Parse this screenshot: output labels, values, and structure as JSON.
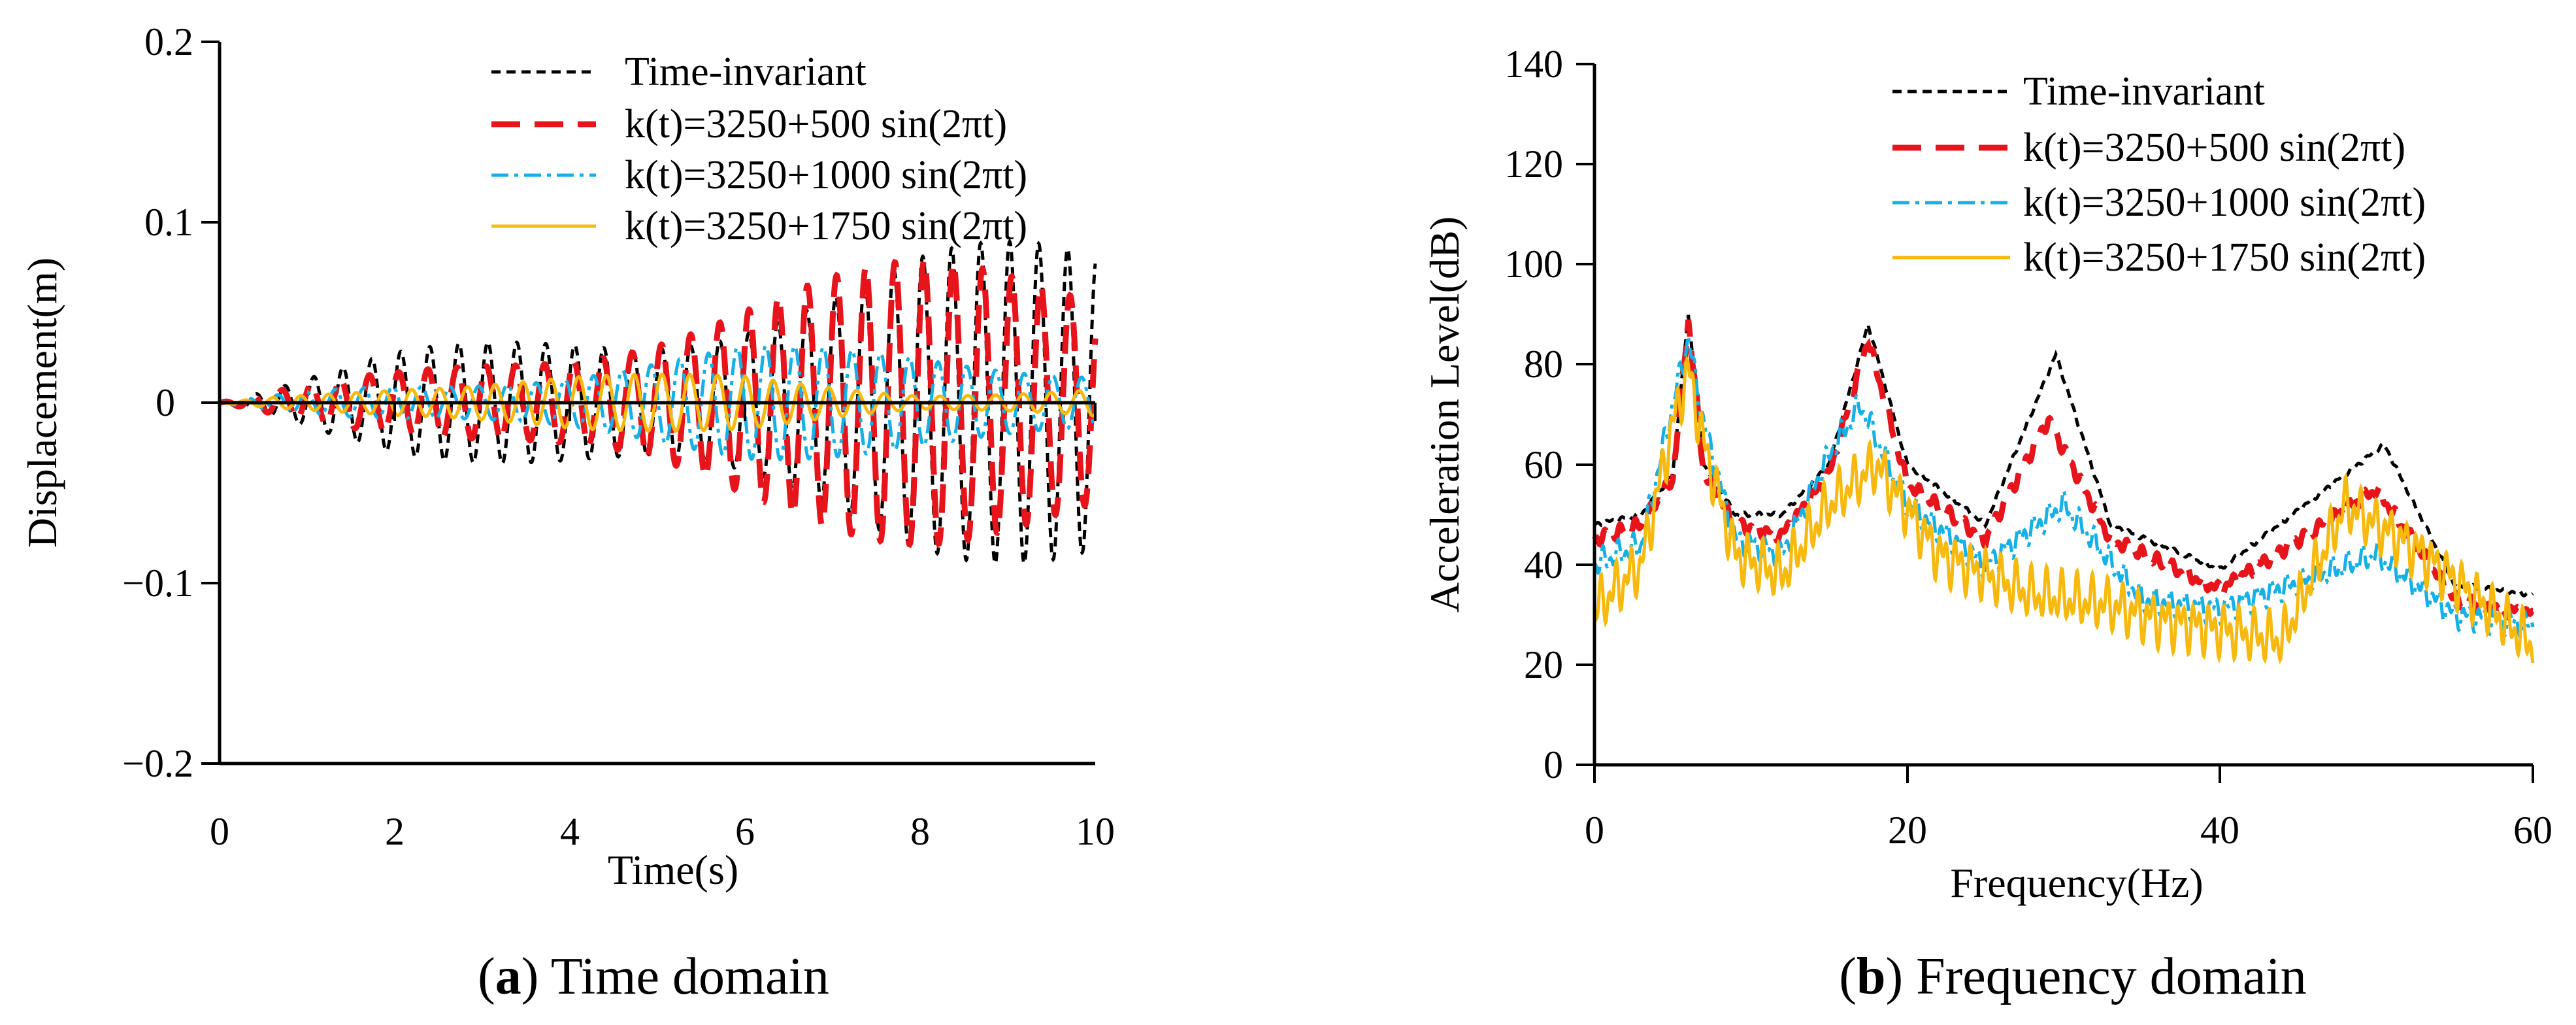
{
  "chart_data": [
    {
      "type": "line",
      "panel": "a",
      "caption_letter": "a",
      "caption_rest": ") Time domain",
      "xlabel": "Time(s)",
      "ylabel": "Displacement(m)",
      "xlim": [
        0,
        10
      ],
      "ylim": [
        -0.2,
        0.2
      ],
      "xticks": [
        "0",
        "2",
        "4",
        "6",
        "8",
        "10"
      ],
      "yticks": [
        "0.2",
        "0.1",
        "0",
        "−0.1",
        "−0.2"
      ],
      "legend_position": "top-right",
      "series": [
        {
          "name": "Time-invariant",
          "color": "#000000",
          "envelope": {
            "t": [
              0,
              2,
              4,
              6,
              8,
              10
            ],
            "amp": [
              0,
              0.028,
              0.05,
              0.068,
              0.085,
              0.095
            ]
          }
        },
        {
          "name": "k(t)=3250+500 sin(2πt)",
          "color": "#e8141b",
          "envelope": {
            "t": [
              0,
              2,
              4,
              6,
              8,
              10
            ],
            "amp": [
              0,
              0.02,
              0.045,
              0.065,
              0.08,
              0.09
            ]
          }
        },
        {
          "name": "k(t)=3250+1000 sin(2πt)",
          "color": "#15b1e6",
          "envelope": {
            "t": [
              0,
              2,
              4,
              6,
              8,
              10
            ],
            "amp": [
              0,
              0.015,
              0.022,
              0.032,
              0.03,
              0.028
            ]
          }
        },
        {
          "name": "k(t)=3250+1750 sin(2πt)",
          "color": "#f7b90d",
          "envelope": {
            "t": [
              0,
              2,
              4,
              6,
              8,
              10
            ],
            "amp": [
              0,
              0.014,
              0.017,
              0.015,
              0.006,
              0.012
            ]
          }
        }
      ]
    },
    {
      "type": "line",
      "panel": "b",
      "caption_letter": "b",
      "caption_rest": ") Frequency domain",
      "xlabel": "Frequency(Hz)",
      "ylabel": "Acceleration Level(dB)",
      "xlim": [
        0,
        60
      ],
      "ylim": [
        0,
        140
      ],
      "xticks": [
        "0",
        "20",
        "40",
        "60"
      ],
      "yticks": [
        "140",
        "120",
        "100",
        "80",
        "60",
        "40",
        "20",
        "0"
      ],
      "legend_position": "top-right",
      "series": [
        {
          "name": "Time-invariant",
          "color": "#000000",
          "points": {
            "x": [
              0,
              3,
              5,
              6,
              7,
              9,
              12,
              15,
              17.5,
              20,
              25,
              29.5,
              33,
              40,
              50.5,
              55,
              60
            ],
            "y": [
              48,
              50,
              58,
              90,
              60,
              50,
              50,
              60,
              88,
              60,
              48,
              82,
              48,
              39,
              64,
              36,
              34
            ]
          }
        },
        {
          "name": "k(t)=3250+500 sin(2πt)",
          "color": "#e8141b",
          "points": {
            "x": [
              0,
              3,
              5,
              6,
              7,
              9,
              12,
              15,
              17.5,
              20,
              25,
              29,
              33,
              40,
              50,
              55,
              60
            ],
            "y": [
              45,
              48,
              57,
              89,
              58,
              48,
              46,
              58,
              85,
              56,
              45,
              69,
              45,
              35,
              55,
              33,
              30
            ]
          }
        },
        {
          "name": "k(t)=3250+1000 sin(2πt)",
          "color": "#15b1e6",
          "points": {
            "x": [
              0,
              3,
              5,
              6,
              7,
              9,
              12,
              15,
              17,
              20,
              25,
              30,
              35,
              40,
              50,
              55,
              60
            ],
            "y": [
              40,
              44,
              72,
              85,
              68,
              45,
              42,
              62,
              72,
              52,
              40,
              52,
              33,
              31,
              42,
              30,
              28
            ]
          }
        },
        {
          "name": "k(t)=3250+1750 sin(2πt)",
          "color": "#f7b90d",
          "points": {
            "x": [
              0,
              3,
              5,
              6,
              7,
              9,
              12,
              15,
              18,
              22,
              28,
              33,
              36,
              44,
              48,
              53,
              60
            ],
            "y": [
              31,
              40,
              68,
              79,
              64,
              42,
              38,
              52,
              60,
              42,
              34,
              32,
              29,
              25,
              52,
              42,
              24
            ]
          }
        }
      ]
    }
  ]
}
